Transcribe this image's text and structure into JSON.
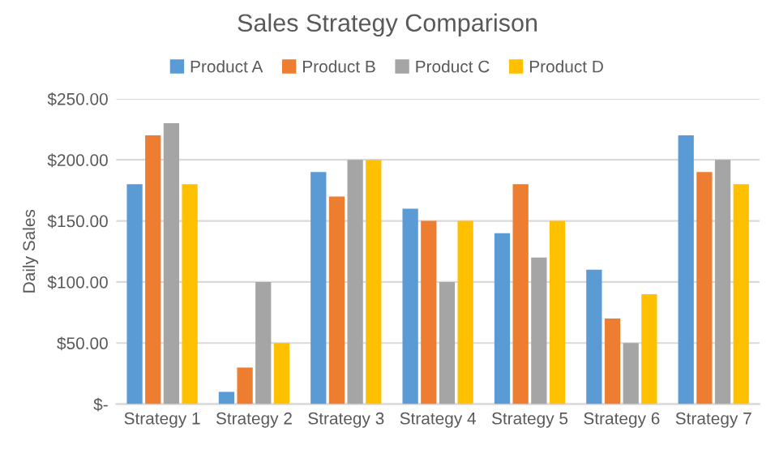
{
  "chart_data": {
    "type": "bar",
    "title": "Sales Strategy Comparison",
    "ylabel": "Daily Sales",
    "categories": [
      "Strategy 1",
      "Strategy 2",
      "Strategy 3",
      "Strategy 4",
      "Strategy 5",
      "Strategy 6",
      "Strategy 7"
    ],
    "series": [
      {
        "name": "Product A",
        "color": "#5b9bd5",
        "values": [
          180,
          10,
          190,
          160,
          140,
          110,
          220
        ]
      },
      {
        "name": "Product B",
        "color": "#ed7d31",
        "values": [
          220,
          30,
          170,
          150,
          180,
          70,
          190
        ]
      },
      {
        "name": "Product C",
        "color": "#a5a5a5",
        "values": [
          230,
          100,
          200,
          100,
          120,
          50,
          200
        ]
      },
      {
        "name": "Product D",
        "color": "#ffc000",
        "values": [
          180,
          50,
          200,
          150,
          150,
          90,
          180
        ]
      }
    ],
    "ylim": [
      0,
      250
    ],
    "yticks": [
      {
        "value": 0,
        "label": "$-"
      },
      {
        "value": 50,
        "label": "$50.00"
      },
      {
        "value": 100,
        "label": "$100.00"
      },
      {
        "value": 150,
        "label": "$150.00"
      },
      {
        "value": 200,
        "label": "$200.00"
      },
      {
        "value": 250,
        "label": "$250.00"
      }
    ],
    "grid": "y",
    "legend": "top"
  }
}
